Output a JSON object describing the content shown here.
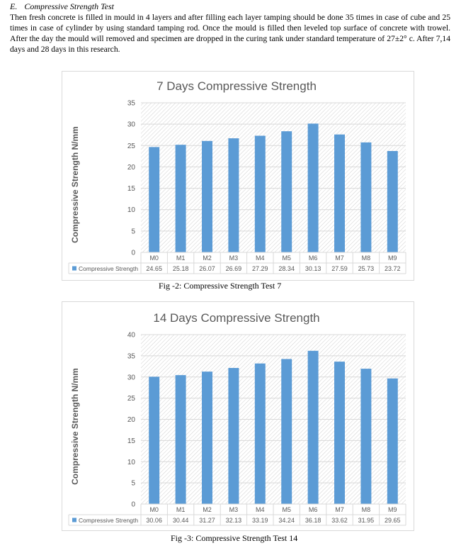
{
  "section": {
    "number": "E.",
    "title": "Compressive Strength Test",
    "paragraph": "Then fresh concrete is filled in mould in 4 layers and after filling each layer tamping should be done 35 times in case of cube and 25 times in case of cylinder by using standard tamping rod. Once the mould is filled then leveled top surface of concrete with trowel. After the day the mould will removed and specimen are dropped in the curing tank under standard temperature of 27±2° c. After 7,14 days and 28 days in this research."
  },
  "captions": [
    "Fig -2:   Compressive Strength Test 7",
    "Fig -3:   Compressive Strength Test 14"
  ],
  "colors": {
    "bar": "#5b9bd5",
    "grid": "#d9d9d9",
    "hatch": "#d0d0d0",
    "title": "#595959",
    "axis_text": "#595959"
  },
  "chart_data": [
    {
      "type": "bar",
      "title": "7 Days Compressive Strength",
      "ylabel": "Compressive Strength N/mm",
      "xlabel": "",
      "categories": [
        "M0",
        "M1",
        "M2",
        "M3",
        "M4",
        "M5",
        "M6",
        "M7",
        "M8",
        "M9"
      ],
      "series": [
        {
          "name": "Compressive Strength",
          "values": [
            24.65,
            25.18,
            26.07,
            26.69,
            27.29,
            28.34,
            30.13,
            27.59,
            25.73,
            23.72
          ]
        }
      ],
      "ylim": [
        0,
        35
      ],
      "yticks": [
        0,
        5,
        10,
        15,
        20,
        25,
        30,
        35
      ],
      "value_labels": [
        "24.65",
        "25.18",
        "26.07",
        "26.69",
        "27.29",
        "28.34",
        "30.13",
        "27.59",
        "25.73",
        "23.72"
      ],
      "data_table": true,
      "grid": true
    },
    {
      "type": "bar",
      "title": "14 Days Compressive Strength",
      "ylabel": "Compressive Strength N/mm",
      "xlabel": "",
      "categories": [
        "M0",
        "M1",
        "M2",
        "M3",
        "M4",
        "M5",
        "M6",
        "M7",
        "M8",
        "M9"
      ],
      "series": [
        {
          "name": "Compressive Strength",
          "values": [
            30.06,
            30.44,
            31.27,
            32.13,
            33.19,
            34.24,
            36.18,
            33.62,
            31.95,
            29.65
          ]
        }
      ],
      "ylim": [
        0,
        40
      ],
      "yticks": [
        0,
        5,
        10,
        15,
        20,
        25,
        30,
        35,
        40
      ],
      "value_labels": [
        "30.06",
        "30.44",
        "31.27",
        "32.13",
        "33.19",
        "34.24",
        "36.18",
        "33.62",
        "31.95",
        "29.65"
      ],
      "data_table": true,
      "grid": true
    }
  ]
}
